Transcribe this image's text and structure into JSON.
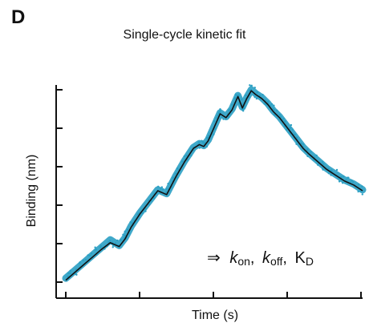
{
  "panel_label": "D",
  "chart_data": {
    "type": "line",
    "title": "Single-cycle kinetic fit",
    "xlabel": "Time (s)",
    "ylabel": "Binding (nm)",
    "x_ticks_count": 5,
    "y_ticks_count": 6,
    "xlim": [
      0,
      1
    ],
    "ylim": [
      0,
      1
    ],
    "annotation": {
      "arrow": "⇒",
      "k_symbol": "k",
      "on_sub": "on",
      "off_sub": "off",
      "kd_main": "K",
      "kd_sub": "D",
      "separator": ","
    },
    "series": [
      {
        "role": "measured data",
        "color": "#2a9fc3",
        "x": [
          0.0,
          0.03,
          0.06,
          0.09,
          0.12,
          0.15,
          0.18,
          0.2,
          0.22,
          0.25,
          0.28,
          0.31,
          0.34,
          0.37,
          0.4,
          0.43,
          0.45,
          0.465,
          0.48,
          0.5,
          0.52,
          0.54,
          0.56,
          0.58,
          0.595,
          0.61,
          0.625,
          0.64,
          0.66,
          0.68,
          0.7,
          0.72,
          0.74,
          0.76,
          0.78,
          0.8,
          0.82,
          0.85,
          0.88,
          0.91,
          0.94,
          0.97,
          1.0
        ],
        "y": [
          0.02,
          0.06,
          0.1,
          0.14,
          0.18,
          0.22,
          0.19,
          0.23,
          0.29,
          0.36,
          0.42,
          0.48,
          0.46,
          0.55,
          0.63,
          0.7,
          0.72,
          0.71,
          0.74,
          0.81,
          0.88,
          0.86,
          0.9,
          0.97,
          0.91,
          0.96,
          1.0,
          0.98,
          0.96,
          0.93,
          0.89,
          0.86,
          0.82,
          0.78,
          0.74,
          0.7,
          0.67,
          0.63,
          0.59,
          0.56,
          0.53,
          0.51,
          0.48
        ]
      },
      {
        "role": "kinetic fit",
        "color": "#111111",
        "x": [
          0.0,
          0.03,
          0.06,
          0.09,
          0.12,
          0.15,
          0.18,
          0.2,
          0.22,
          0.25,
          0.28,
          0.31,
          0.34,
          0.37,
          0.4,
          0.43,
          0.45,
          0.465,
          0.48,
          0.5,
          0.52,
          0.54,
          0.56,
          0.58,
          0.595,
          0.61,
          0.625,
          0.64,
          0.66,
          0.68,
          0.7,
          0.72,
          0.74,
          0.76,
          0.78,
          0.8,
          0.82,
          0.85,
          0.88,
          0.91,
          0.94,
          0.97,
          1.0
        ],
        "y": [
          0.01,
          0.05,
          0.09,
          0.13,
          0.17,
          0.205,
          0.185,
          0.225,
          0.285,
          0.355,
          0.415,
          0.475,
          0.455,
          0.545,
          0.625,
          0.695,
          0.715,
          0.705,
          0.735,
          0.805,
          0.875,
          0.855,
          0.895,
          0.965,
          0.905,
          0.955,
          0.995,
          0.975,
          0.955,
          0.925,
          0.885,
          0.855,
          0.815,
          0.775,
          0.735,
          0.695,
          0.665,
          0.625,
          0.585,
          0.555,
          0.525,
          0.505,
          0.475
        ]
      }
    ]
  }
}
